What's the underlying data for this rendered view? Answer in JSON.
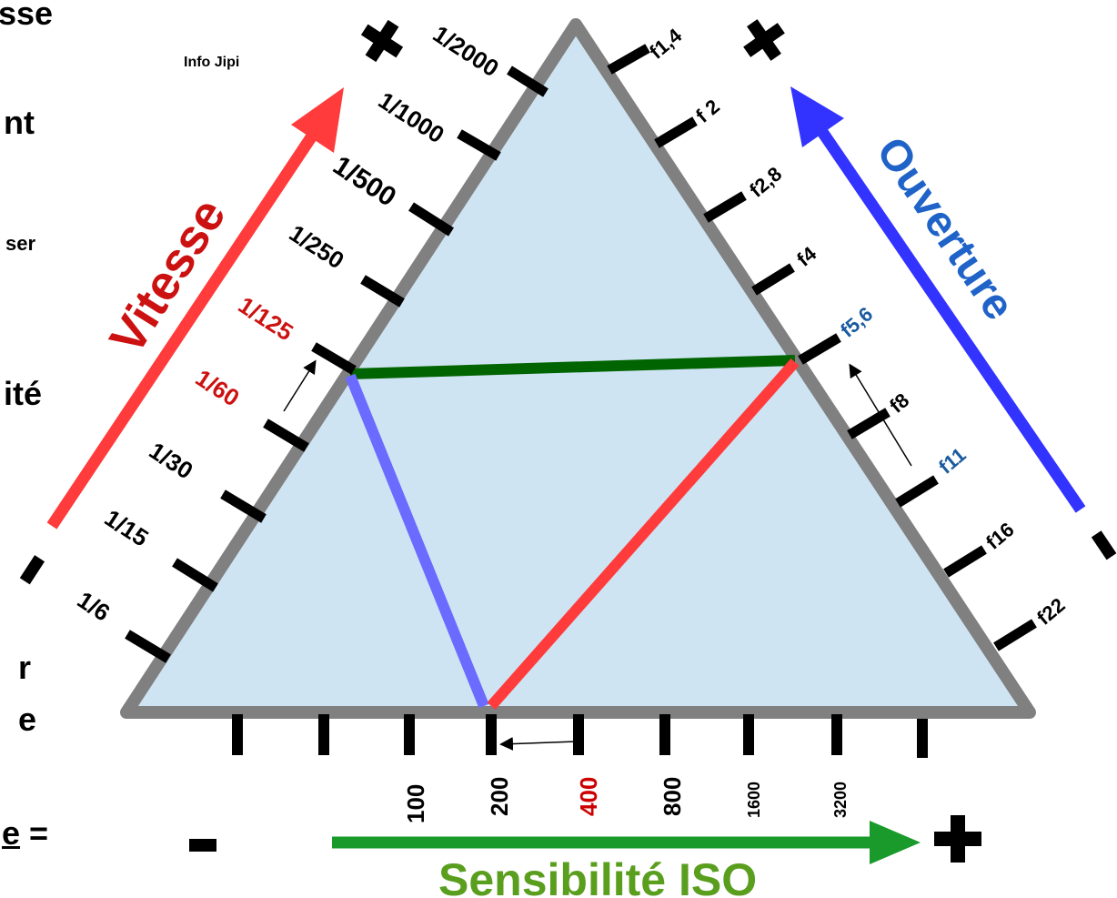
{
  "credit": "Info Jipi",
  "left_fragments": [
    "sse",
    "nt",
    "ser",
    "ité",
    "r",
    "e",
    "e",
    "="
  ],
  "speed_axis": {
    "title": "Vitesse",
    "ticks": [
      "1/2000",
      "1/1000",
      "1/500",
      "1/250",
      "1/125",
      "1/60",
      "1/30",
      "1/15",
      "1/6"
    ],
    "highlight": [
      "1/125",
      "1/60"
    ]
  },
  "aperture_axis": {
    "title": "Ouverture",
    "ticks": [
      "f1,4",
      "f 2",
      "f2,8",
      "f4",
      "f5,6",
      "f8",
      "f11",
      "f16",
      "f22"
    ],
    "highlight": [
      "f5,6",
      "f11"
    ]
  },
  "iso_axis": {
    "title": "Sensibilité ISO",
    "ticks": [
      "100",
      "200",
      "400",
      "800",
      "1600",
      "3200"
    ],
    "highlight": [
      "400"
    ]
  },
  "signs": {
    "plus": "+",
    "minus": "-"
  },
  "colors": {
    "triangle_fill": "#cfe4f3",
    "triangle_stroke": "#808080",
    "speed": "#ff3b3b",
    "speed_label": "#cc1111",
    "aperture_arrow": "#3333ff",
    "aperture_label": "#1f63c9",
    "aperture_highlight": "#1a5aa0",
    "iso_arrow": "#1a9a2a",
    "iso_label": "#5a9e1e",
    "green_line": "#006400",
    "blue_line": "#6b6bff",
    "red_line": "#ff3b3b",
    "highlight_red": "#cc0000"
  }
}
